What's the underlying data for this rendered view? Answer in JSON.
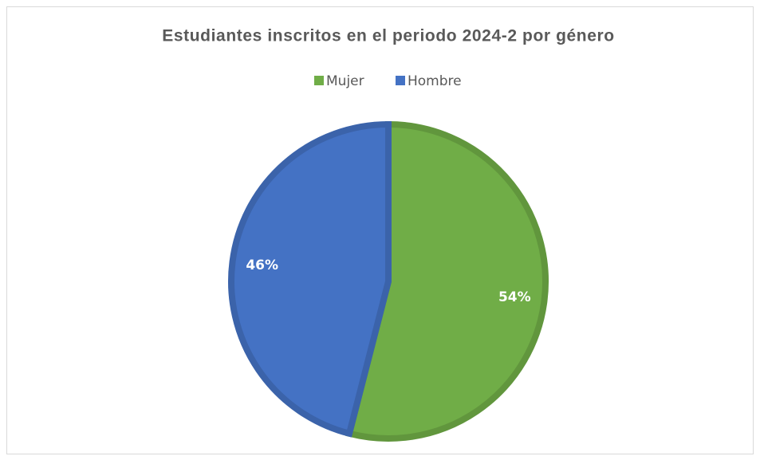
{
  "chart_data": {
    "type": "pie",
    "title": "Estudiantes inscritos en el periodo 2024-2 por género",
    "categories": [
      "Mujer",
      "Hombre"
    ],
    "values": [
      54,
      46
    ],
    "value_labels": [
      "54%",
      "46%"
    ],
    "colors": [
      "#70ad47",
      "#4472c4"
    ],
    "legend": "top"
  }
}
